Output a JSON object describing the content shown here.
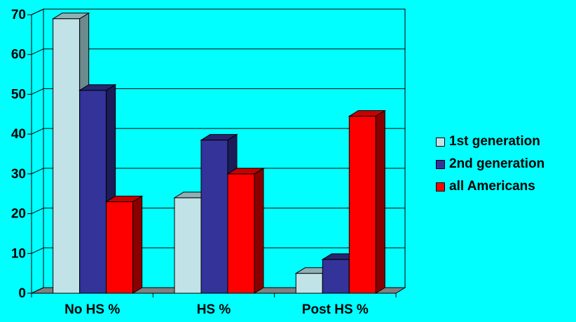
{
  "colors": {
    "background": "#00ffff",
    "gridline": "#000000",
    "floor": "#808080"
  },
  "chart_data": {
    "type": "bar",
    "categories": [
      "No HS %",
      "HS %",
      "Post HS %"
    ],
    "series": [
      {
        "name": "1st generation",
        "values": [
          69,
          24,
          5
        ],
        "color": "#c1e3e8",
        "side": "#6d8a8e",
        "top": "#8fb0b5"
      },
      {
        "name": "2nd generation",
        "values": [
          51,
          38.5,
          8.5
        ],
        "color": "#333399",
        "side": "#1c1c5a",
        "top": "#262673"
      },
      {
        "name": "all Americans",
        "values": [
          23,
          30,
          44.5
        ],
        "color": "#ff0000",
        "side": "#8a0000",
        "top": "#c80000"
      }
    ],
    "yticks": [
      0,
      10,
      20,
      30,
      40,
      50,
      60,
      70
    ],
    "ylim": [
      0,
      70
    ],
    "grid": true,
    "legend": "right",
    "three_d": true
  }
}
